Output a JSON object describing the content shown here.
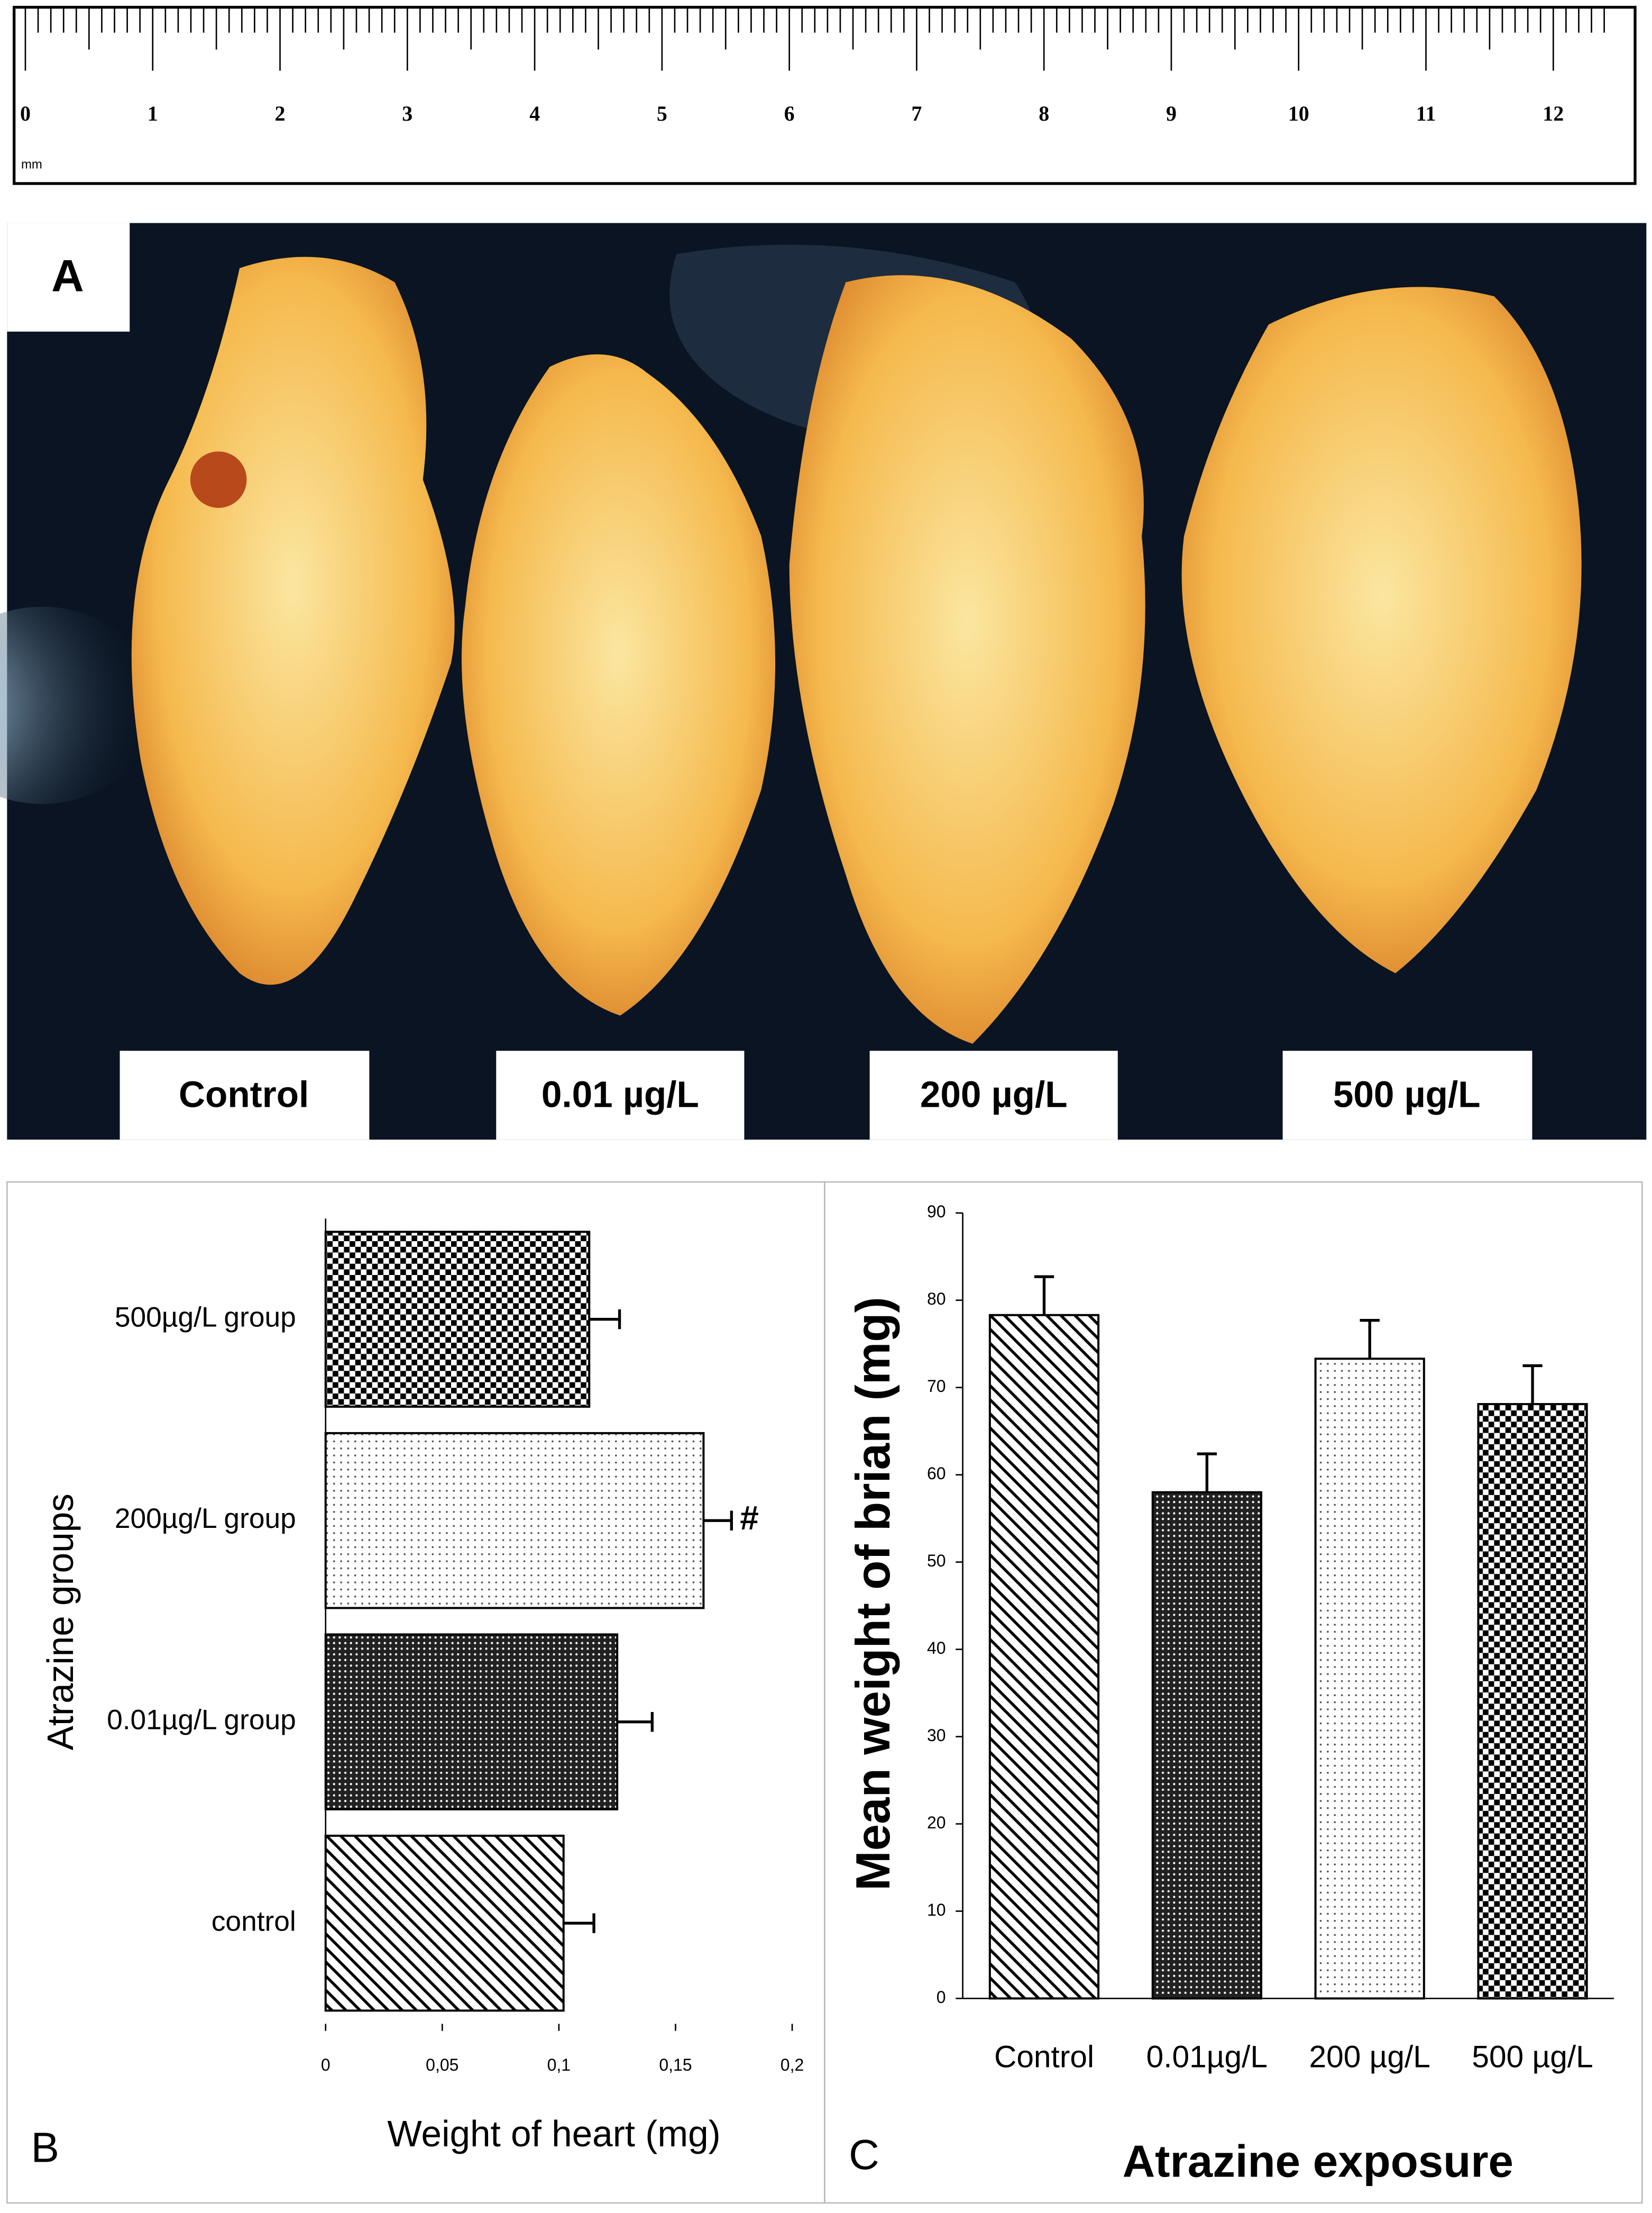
{
  "figure": {
    "ruler": {
      "labels": [
        0,
        1,
        2,
        3,
        4,
        5,
        6,
        7,
        8,
        9,
        10,
        11,
        12
      ],
      "unit": "mm"
    },
    "photo": {
      "panel_label": "A",
      "labels": [
        "Control",
        "0.01 µg/L",
        "200 µg/L",
        "500 µg/L"
      ]
    }
  },
  "chart_data": [
    {
      "type": "bar",
      "orientation": "horizontal",
      "panel_label": "B",
      "x_label": "Weight of heart (mg)",
      "y_label": "Atrazine groups",
      "categories": [
        "control",
        "0.01µg/L group",
        "200µg/L group",
        "500µg/L group"
      ],
      "values": [
        0.102,
        0.125,
        0.162,
        0.113
      ],
      "errors": [
        0.013,
        0.015,
        0.012,
        0.013
      ],
      "patterns": [
        "hatch",
        "dense-dots",
        "light-dots",
        "checker"
      ],
      "annotations": [
        null,
        null,
        "#",
        null
      ],
      "xlim": [
        0,
        0.2
      ],
      "xticks": [
        0,
        {
          "value": 0.05,
          "label": "0,05"
        },
        {
          "value": 0.1,
          "label": "0,1"
        },
        {
          "value": 0.15,
          "label": "0,15"
        },
        {
          "value": 0.2,
          "label": "0,2"
        }
      ]
    },
    {
      "type": "bar",
      "orientation": "vertical",
      "panel_label": "C",
      "x_label": "Atrazine exposure",
      "y_label": "Mean weight of brian (mg)",
      "categories": [
        "Control",
        "0.01µg/L",
        "200 µg/L",
        "500 µg/L"
      ],
      "values": [
        78.3,
        58,
        73.3,
        68.1
      ],
      "errors": [
        4.4,
        4.4,
        4.4,
        4.4
      ],
      "patterns": [
        "hatch",
        "dense-dots",
        "light-dots",
        "checker"
      ],
      "ylim": [
        0,
        90
      ],
      "yticks": [
        0,
        10,
        20,
        30,
        40,
        50,
        60,
        70,
        80,
        90
      ]
    }
  ]
}
